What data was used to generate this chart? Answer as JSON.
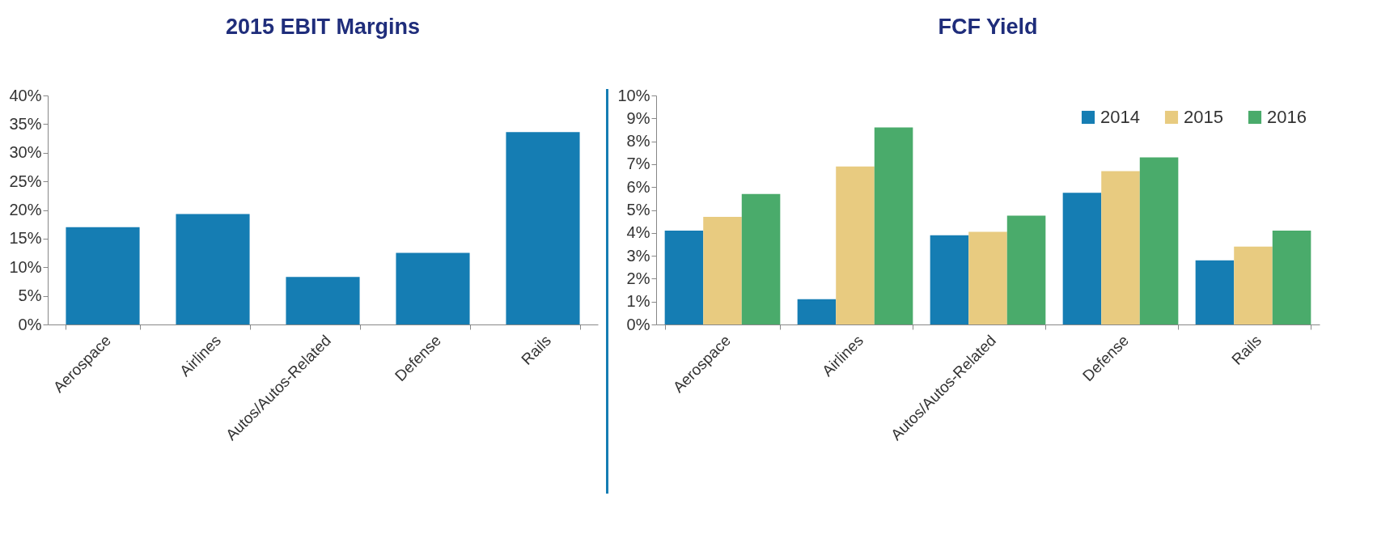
{
  "chart_data": [
    {
      "type": "bar",
      "title": "2015 EBIT Margins",
      "categories": [
        "Aerospace",
        "Airlines",
        "Autos/Autos-Related",
        "Defense",
        "Rails"
      ],
      "values": [
        17.0,
        19.3,
        8.3,
        12.5,
        33.6
      ],
      "color": "#157db3",
      "ylim": [
        0,
        40
      ],
      "yticks": [
        {
          "value": 0,
          "label": "0%"
        },
        {
          "value": 5,
          "label": "5%"
        },
        {
          "value": 10,
          "label": "10%"
        },
        {
          "value": 15,
          "label": "15%"
        },
        {
          "value": 20,
          "label": "20%"
        },
        {
          "value": 25,
          "label": "25%"
        },
        {
          "value": 30,
          "label": "30%"
        },
        {
          "value": 35,
          "label": "35%"
        },
        {
          "value": 40,
          "label": "40%"
        }
      ],
      "grid": false,
      "legend": false
    },
    {
      "type": "bar",
      "title": "FCF Yield",
      "categories": [
        "Aerospace",
        "Airlines",
        "Autos/Autos-Related",
        "Defense",
        "Rails"
      ],
      "series": [
        {
          "name": "2014",
          "color": "#157db3",
          "values": [
            4.1,
            1.1,
            3.9,
            5.75,
            2.8
          ]
        },
        {
          "name": "2015",
          "color": "#e8cb80",
          "values": [
            4.7,
            6.9,
            4.05,
            6.7,
            3.4
          ]
        },
        {
          "name": "2016",
          "color": "#4aab6b",
          "values": [
            5.7,
            8.6,
            4.75,
            7.3,
            4.1
          ]
        }
      ],
      "ylim": [
        0,
        10
      ],
      "yticks": [
        {
          "value": 0,
          "label": "0%"
        },
        {
          "value": 1,
          "label": "1%"
        },
        {
          "value": 2,
          "label": "2%"
        },
        {
          "value": 3,
          "label": "3%"
        },
        {
          "value": 4,
          "label": "4%"
        },
        {
          "value": 5,
          "label": "5%"
        },
        {
          "value": 6,
          "label": "6%"
        },
        {
          "value": 7,
          "label": "7%"
        },
        {
          "value": 8,
          "label": "8%"
        },
        {
          "value": 9,
          "label": "9%"
        },
        {
          "value": 10,
          "label": "10%"
        }
      ],
      "grid": false,
      "legend": "top right"
    }
  ]
}
